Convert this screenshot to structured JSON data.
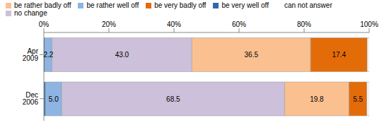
{
  "chart_data": {
    "type": "bar",
    "orientation": "horizontal",
    "stacked": true,
    "data_labels": true,
    "grid": false,
    "legend": "top",
    "categories": [
      "Apr 2009",
      "Dec 2006"
    ],
    "xlim": [
      0,
      100
    ],
    "xticks": [
      {
        "value": 0,
        "label": "0%"
      },
      {
        "value": 20,
        "label": "20%"
      },
      {
        "value": 40,
        "label": "40%"
      },
      {
        "value": 60,
        "label": "60%"
      },
      {
        "value": 80,
        "label": "80%"
      },
      {
        "value": 100,
        "label": "100%"
      }
    ],
    "series": [
      {
        "name": "be very well off",
        "color": "#2e6aa8",
        "values": [
          0.3,
          0.5
        ],
        "value_labels": [
          null,
          null
        ]
      },
      {
        "name": "be rather well off",
        "color": "#8db4e2",
        "values": [
          2.2,
          5.0
        ],
        "value_labels": [
          "2.2",
          "5.0"
        ]
      },
      {
        "name": "no change",
        "color": "#ccc0da",
        "values": [
          43.0,
          68.5
        ],
        "value_labels": [
          "43.0",
          "68.5"
        ]
      },
      {
        "name": "be rather badly off",
        "color": "#fac090",
        "values": [
          36.5,
          19.8
        ],
        "value_labels": [
          "36.5",
          "19.8"
        ]
      },
      {
        "name": "be very badly off",
        "color": "#e36c09",
        "values": [
          17.4,
          5.5
        ],
        "value_labels": [
          "17.4",
          "5.5"
        ]
      },
      {
        "name": "can not answer",
        "color": "#ffffff",
        "values": [
          0.6,
          0.7
        ],
        "value_labels": [
          null,
          null
        ]
      }
    ]
  }
}
